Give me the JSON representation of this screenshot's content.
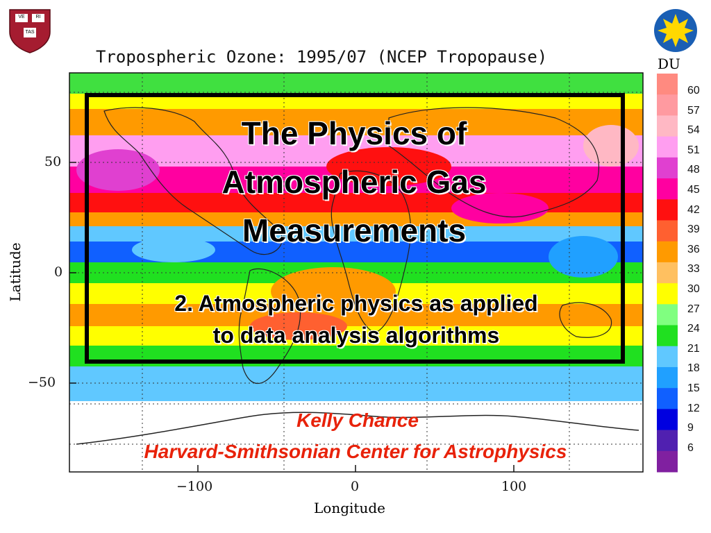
{
  "map": {
    "title": "Tropospheric Ozone: 1995/07 (NCEP Tropopause)",
    "xlabel": "Longitude",
    "ylabel": "Latitude",
    "x_ticks": [
      "−100",
      "0",
      "100"
    ],
    "y_ticks": [
      "50",
      "0",
      "−50"
    ]
  },
  "colorbar": {
    "unit": "DU",
    "levels": [
      "60",
      "57",
      "54",
      "51",
      "48",
      "45",
      "42",
      "39",
      "36",
      "33",
      "30",
      "27",
      "24",
      "21",
      "18",
      "15",
      "12",
      "9",
      "6"
    ],
    "colors": [
      "#ff8a80",
      "#ff9aa0",
      "#ffb8c4",
      "#ff9ef0",
      "#e040d0",
      "#ff00a0",
      "#ff1010",
      "#ff6030",
      "#ff9a00",
      "#ffc060",
      "#ffff00",
      "#80ff80",
      "#20e020",
      "#60c8ff",
      "#20a0ff",
      "#1060ff",
      "#0000e0",
      "#5020b0",
      "#8020a0"
    ]
  },
  "slide": {
    "title_line1": "The Physics of",
    "title_line2": "Atmospheric Gas",
    "title_line3": "Measurements",
    "subtitle_line1": "2. Atmospheric physics as applied",
    "subtitle_line2": "to data analysis algorithms",
    "author": "Kelly Chance",
    "organization": "Harvard-Smithsonian Center for Astrophysics"
  },
  "logos": {
    "left_icon": "harvard-shield-icon",
    "left_text": [
      "VE",
      "RI",
      "TAS"
    ],
    "right_icon": "smithsonian-sun-icon"
  }
}
